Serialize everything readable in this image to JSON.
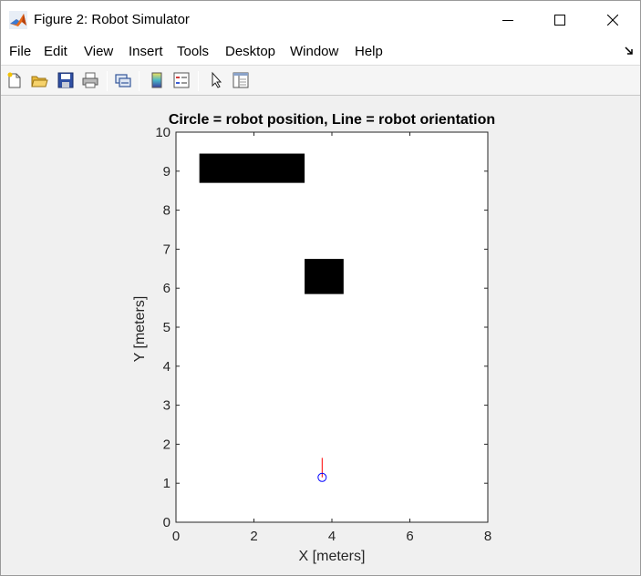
{
  "window": {
    "title": "Figure 2: Robot Simulator",
    "icons": {
      "app": "matlab-logo-icon",
      "minimize": "minimize-icon",
      "maximize": "maximize-icon",
      "close": "close-icon"
    }
  },
  "menu": {
    "items": [
      "File",
      "Edit",
      "View",
      "Insert",
      "Tools",
      "Desktop",
      "Window",
      "Help"
    ],
    "dock_icon": "dock-arrow-icon"
  },
  "toolbar": {
    "buttons": [
      "new-figure-icon",
      "open-file-icon",
      "save-icon",
      "print-icon",
      "link-plot-icon",
      "insert-colorbar-icon",
      "insert-legend-icon",
      "edit-plot-icon",
      "property-inspector-icon"
    ]
  },
  "chart_data": {
    "type": "scatter",
    "title": "Circle = robot position, Line = robot orientation",
    "xlabel": "X [meters]",
    "ylabel": "Y [meters]",
    "xlim": [
      0,
      8
    ],
    "ylim": [
      0,
      10
    ],
    "xticks": [
      "0",
      "2",
      "4",
      "6",
      "8"
    ],
    "yticks": [
      "0",
      "1",
      "2",
      "3",
      "4",
      "5",
      "6",
      "7",
      "8",
      "9",
      "10"
    ],
    "grid": false,
    "obstacles": [
      {
        "x": [
          0.6,
          3.3
        ],
        "y": [
          8.7,
          9.45
        ],
        "color": "#000000"
      },
      {
        "x": [
          3.3,
          4.3
        ],
        "y": [
          5.85,
          6.75
        ],
        "color": "#000000"
      }
    ],
    "robot": {
      "position": {
        "x": 3.75,
        "y": 1.15,
        "marker": "circle",
        "color": "#0000ff"
      },
      "orientation": {
        "x": [
          3.75,
          3.75
        ],
        "y": [
          1.15,
          1.65
        ],
        "color": "#ff0000"
      }
    }
  }
}
